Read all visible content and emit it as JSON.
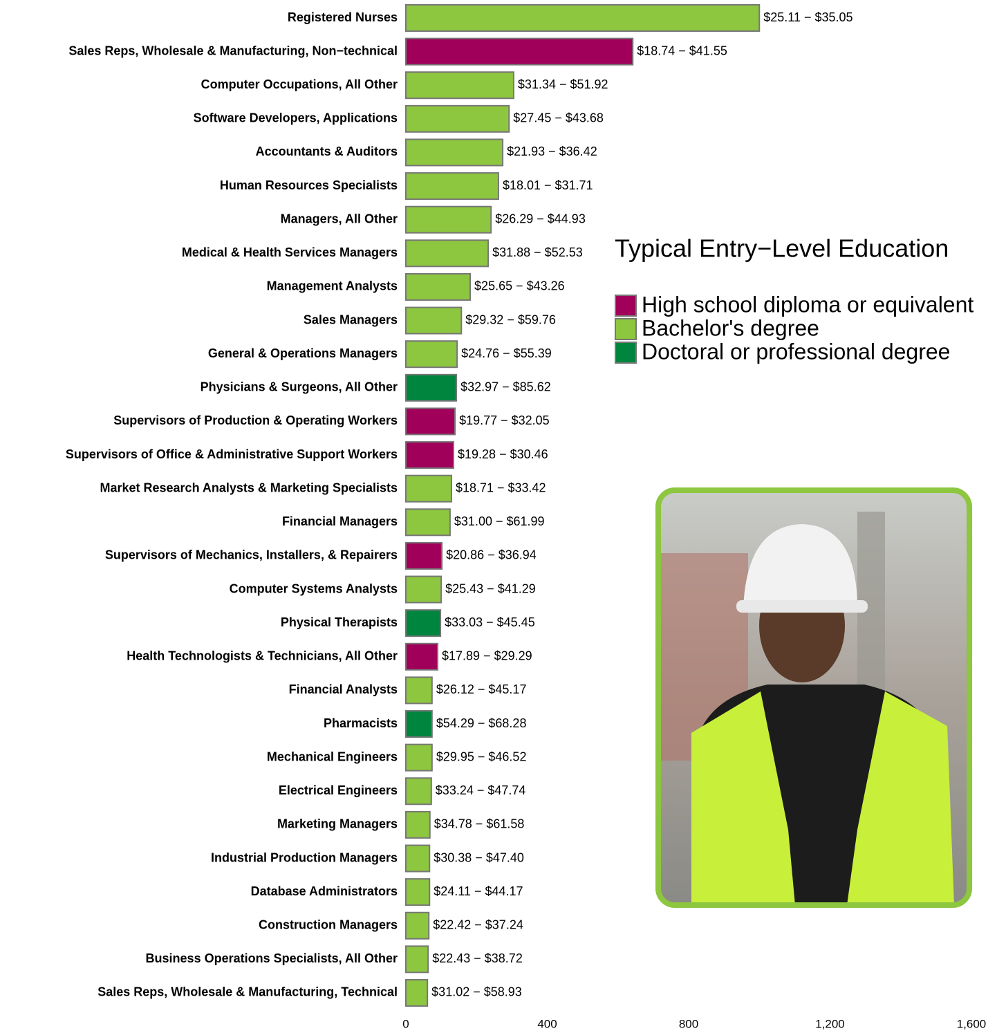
{
  "chart_data": {
    "type": "bar",
    "orientation": "horizontal",
    "categories": [
      "Registered Nurses",
      "Sales Reps, Wholesale & Manufacturing, Non−technical",
      "Computer Occupations, All Other",
      "Software Developers, Applications",
      "Accountants & Auditors",
      "Human Resources Specialists",
      "Managers, All Other",
      "Medical & Health Services Managers",
      "Management Analysts",
      "Sales Managers",
      "General & Operations Managers",
      "Physicians & Surgeons, All Other",
      "Supervisors of Production & Operating Workers",
      "Supervisors of Office & Administrative Support Workers",
      "Market Research Analysts & Marketing Specialists",
      "Financial Managers",
      "Supervisors of Mechanics, Installers, & Repairers",
      "Computer Systems Analysts",
      "Physical Therapists",
      "Health Technologists & Technicians, All Other",
      "Financial Analysts",
      "Pharmacists",
      "Mechanical Engineers",
      "Electrical Engineers",
      "Marketing Managers",
      "Industrial Production Managers",
      "Database Administrators",
      "Construction Managers",
      "Business Operations Specialists, All Other",
      "Sales Reps, Wholesale & Manufacturing, Technical"
    ],
    "values": [
      1000,
      642,
      305,
      292,
      274,
      262,
      241,
      233,
      182,
      157,
      145,
      143,
      139,
      135,
      129,
      125,
      102,
      100,
      98,
      90,
      74,
      74,
      74,
      72,
      68,
      67,
      67,
      65,
      63,
      61
    ],
    "wage_ranges": [
      "$25.11 − $35.05",
      "$18.74 − $41.55",
      "$31.34 − $51.92",
      "$27.45 − $43.68",
      "$21.93 − $36.42",
      "$18.01 − $31.71",
      "$26.29 − $44.93",
      "$31.88 − $52.53",
      "$25.65 − $43.26",
      "$29.32 − $59.76",
      "$24.76 − $55.39",
      "$32.97 − $85.62",
      "$19.77 − $32.05",
      "$19.28 − $30.46",
      "$18.71 − $33.42",
      "$31.00 − $61.99",
      "$20.86 − $36.94",
      "$25.43 − $41.29",
      "$33.03 − $45.45",
      "$17.89 − $29.29",
      "$26.12 − $45.17",
      "$54.29 − $68.28",
      "$29.95 − $46.52",
      "$33.24 − $47.74",
      "$34.78 − $61.58",
      "$30.38 − $47.40",
      "$24.11 − $44.17",
      "$22.42 − $37.24",
      "$22.43 − $38.72",
      "$31.02 − $58.93"
    ],
    "colors": [
      "#8dc63f",
      "#a0005a",
      "#8dc63f",
      "#8dc63f",
      "#8dc63f",
      "#8dc63f",
      "#8dc63f",
      "#8dc63f",
      "#8dc63f",
      "#8dc63f",
      "#8dc63f",
      "#00853f",
      "#a0005a",
      "#a0005a",
      "#8dc63f",
      "#8dc63f",
      "#a0005a",
      "#8dc63f",
      "#00853f",
      "#a0005a",
      "#8dc63f",
      "#00853f",
      "#8dc63f",
      "#8dc63f",
      "#8dc63f",
      "#8dc63f",
      "#8dc63f",
      "#8dc63f",
      "#8dc63f",
      "#8dc63f"
    ],
    "xlim": [
      0,
      1600
    ],
    "xticks": [
      0,
      400,
      800,
      {
        "value": 1200,
        "label": "1,200"
      },
      {
        "value": 1600,
        "label": "1,600"
      }
    ],
    "legend": {
      "title": "Typical Entry−Level Education",
      "entries": [
        {
          "name": "High school diploma or equivalent",
          "color": "#a0005a"
        },
        {
          "name": "Bachelor's degree",
          "color": "#8dc63f"
        },
        {
          "name": "Doctoral or professional degree",
          "color": "#00853f"
        }
      ]
    }
  }
}
